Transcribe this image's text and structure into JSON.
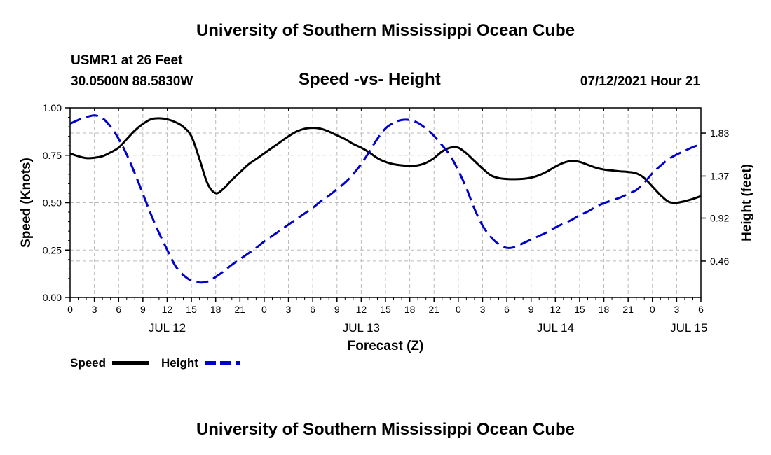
{
  "header": {
    "title": "University of Southern Mississippi Ocean Cube",
    "station": "USMR1 at 26 Feet",
    "coords": "30.0500N  88.5830W",
    "subtitle": "Speed -vs- Height",
    "datetime": "07/12/2021 Hour 21"
  },
  "footer": {
    "title": "University of Southern Mississippi Ocean Cube"
  },
  "legend": {
    "speed_label": "Speed",
    "height_label": "Height"
  },
  "colors": {
    "speed": "#000000",
    "height": "#0000cc",
    "grid": "#bbbbbb"
  },
  "chart_data": {
    "type": "line",
    "title": "Speed -vs- Height",
    "xlabel": "Forecast (Z)",
    "ylabel": "Speed (Knots)",
    "y2label": "Height (feet)",
    "x_unit": "hours from 2021-07-12 00Z",
    "xlim": [
      0,
      78
    ],
    "ylim": [
      0,
      1.0
    ],
    "y2lim": [
      0.07,
      2.1
    ],
    "x_ticks": [
      0,
      3,
      6,
      9,
      12,
      15,
      18,
      21,
      24,
      27,
      30,
      33,
      36,
      39,
      42,
      45,
      48,
      51,
      54,
      57,
      60,
      63,
      66,
      69,
      72,
      75,
      78
    ],
    "x_tick_labels": [
      "0",
      "3",
      "6",
      "9",
      "12",
      "15",
      "18",
      "21",
      "0",
      "3",
      "6",
      "9",
      "12",
      "15",
      "18",
      "21",
      "0",
      "3",
      "6",
      "9",
      "12",
      "15",
      "18",
      "21",
      "0",
      "3",
      "6"
    ],
    "y_ticks": [
      0,
      0.25,
      0.5,
      0.75,
      1.0
    ],
    "y_tick_labels": [
      "0.00",
      "0.25",
      "0.50",
      "0.75",
      "1.00"
    ],
    "y2_ticks": [
      0.46,
      0.92,
      1.37,
      1.83
    ],
    "y2_tick_labels": [
      "0.46",
      "0.92",
      "1.37",
      "1.83"
    ],
    "day_labels": [
      {
        "x": 12,
        "label": "JUL 12"
      },
      {
        "x": 36,
        "label": "JUL 13"
      },
      {
        "x": 60,
        "label": "JUL 14"
      },
      {
        "x": 76.5,
        "label": "JUL 15"
      }
    ],
    "series": [
      {
        "name": "Speed",
        "axis": "left",
        "style": "solid",
        "x": [
          0,
          1,
          2,
          3,
          4,
          5,
          6,
          7,
          8,
          9,
          10,
          11,
          12,
          13,
          14,
          15,
          16,
          17,
          18,
          19,
          20,
          21,
          22,
          23,
          24,
          25,
          26,
          27,
          28,
          29,
          30,
          31,
          32,
          33,
          34,
          35,
          36,
          37,
          38,
          39,
          40,
          41,
          42,
          43,
          44,
          45,
          46,
          47,
          48,
          49,
          50,
          51,
          52,
          53,
          54,
          55,
          56,
          57,
          58,
          59,
          60,
          61,
          62,
          63,
          64,
          65,
          66,
          67,
          68,
          69,
          70,
          71,
          72,
          73,
          74,
          75,
          76,
          77,
          78
        ],
        "values": [
          0.76,
          0.745,
          0.735,
          0.737,
          0.745,
          0.765,
          0.79,
          0.835,
          0.88,
          0.915,
          0.94,
          0.945,
          0.94,
          0.925,
          0.9,
          0.85,
          0.73,
          0.6,
          0.55,
          0.575,
          0.62,
          0.66,
          0.7,
          0.73,
          0.76,
          0.79,
          0.82,
          0.85,
          0.875,
          0.89,
          0.895,
          0.89,
          0.875,
          0.855,
          0.835,
          0.81,
          0.79,
          0.765,
          0.735,
          0.715,
          0.703,
          0.697,
          0.693,
          0.697,
          0.71,
          0.735,
          0.77,
          0.79,
          0.79,
          0.76,
          0.72,
          0.68,
          0.645,
          0.63,
          0.625,
          0.624,
          0.626,
          0.632,
          0.645,
          0.665,
          0.69,
          0.71,
          0.72,
          0.715,
          0.7,
          0.685,
          0.675,
          0.67,
          0.665,
          0.662,
          0.655,
          0.63,
          0.585,
          0.54,
          0.505,
          0.5,
          0.508,
          0.52,
          0.535
        ]
      },
      {
        "name": "Height",
        "axis": "right",
        "style": "dashed",
        "x": [
          0,
          1,
          2,
          3,
          4,
          5,
          6,
          7,
          8,
          9,
          10,
          11,
          12,
          13,
          14,
          15,
          16,
          17,
          18,
          19,
          20,
          21,
          22,
          23,
          24,
          25,
          26,
          27,
          28,
          29,
          30,
          31,
          32,
          33,
          34,
          35,
          36,
          37,
          38,
          39,
          40,
          41,
          42,
          43,
          44,
          45,
          46,
          47,
          48,
          49,
          50,
          51,
          52,
          53,
          54,
          55,
          56,
          57,
          58,
          59,
          60,
          61,
          62,
          63,
          64,
          65,
          66,
          67,
          68,
          69,
          70,
          71,
          72,
          73,
          74,
          75,
          76,
          77,
          78
        ],
        "values": [
          1.93,
          1.97,
          2.0,
          2.02,
          1.99,
          1.9,
          1.77,
          1.6,
          1.4,
          1.18,
          0.96,
          0.76,
          0.58,
          0.41,
          0.31,
          0.25,
          0.23,
          0.24,
          0.29,
          0.35,
          0.42,
          0.48,
          0.54,
          0.6,
          0.67,
          0.73,
          0.79,
          0.85,
          0.91,
          0.97,
          1.03,
          1.1,
          1.16,
          1.23,
          1.3,
          1.39,
          1.5,
          1.63,
          1.77,
          1.88,
          1.94,
          1.97,
          1.97,
          1.94,
          1.88,
          1.8,
          1.7,
          1.59,
          1.43,
          1.24,
          1.02,
          0.84,
          0.72,
          0.64,
          0.6,
          0.61,
          0.65,
          0.69,
          0.73,
          0.77,
          0.82,
          0.86,
          0.9,
          0.95,
          0.99,
          1.04,
          1.08,
          1.11,
          1.14,
          1.18,
          1.22,
          1.3,
          1.4,
          1.48,
          1.55,
          1.6,
          1.64,
          1.68,
          1.71
        ]
      }
    ]
  }
}
